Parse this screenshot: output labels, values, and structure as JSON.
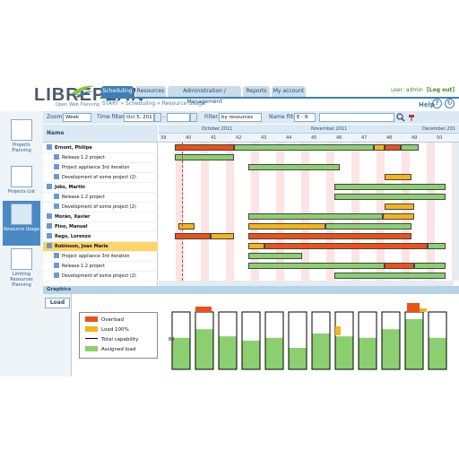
{
  "app": {
    "logo_text": "LIBREPLAN",
    "logo_sub": "Open Web Planning"
  },
  "tabs": [
    {
      "label": "Scheduling",
      "active": true
    },
    {
      "label": "Resources",
      "active": false
    },
    {
      "label": "Administration / Management",
      "active": false
    },
    {
      "label": "Reports",
      "active": false
    },
    {
      "label": "My account",
      "active": false
    }
  ],
  "user": {
    "label": "user: admin",
    "logout": "[Log out]"
  },
  "breadcrumb": {
    "start": "START",
    "sep": "»",
    "scheduling": "Scheduling",
    "current": "Resource Usage"
  },
  "help": {
    "label": "Help",
    "q_icon": "?",
    "refresh_icon": "↻"
  },
  "sidebar": {
    "items": [
      {
        "label": "Projects Planning",
        "icon": "gantt-icon",
        "active": false
      },
      {
        "label": "Projects List",
        "icon": "list-icon",
        "active": false
      },
      {
        "label": "Resource Usage",
        "icon": "chart-icon",
        "active": true
      },
      {
        "label": "Limiting Resources Planning",
        "icon": "queue-icon",
        "active": false
      }
    ]
  },
  "toolbar": {
    "zoom_label": "Zoom:",
    "zoom_value": "Week",
    "time_filter_label": "Time filter:",
    "time_from": "Oct 5, 201",
    "time_to": "",
    "filter_label": "Filter:",
    "filter_value": "by resources",
    "name_filter_label": "Name filter:",
    "name_filter_value": "E - R",
    "search_value": ""
  },
  "names_header": "Name",
  "rows": [
    {
      "label": "Ernont, Philipe",
      "type": "resource",
      "selected": false
    },
    {
      "label": "Release 1.2 project",
      "type": "task",
      "selected": false
    },
    {
      "label": "Project appliance 3rd iteration",
      "type": "task",
      "selected": false
    },
    {
      "label": "Development of some project (2)",
      "type": "task",
      "selected": false
    },
    {
      "label": "Jobs, Martin",
      "type": "resource",
      "selected": false
    },
    {
      "label": "Release 1.2 project",
      "type": "task",
      "selected": false
    },
    {
      "label": "Development of some project (2)",
      "type": "task",
      "selected": false
    },
    {
      "label": "Morán, Xavier",
      "type": "resource",
      "selected": false
    },
    {
      "label": "Pino, Manuel",
      "type": "resource",
      "selected": false
    },
    {
      "label": "Rego, Lorenzo",
      "type": "resource",
      "selected": false
    },
    {
      "label": "Robinson, Joan Marie",
      "type": "resource",
      "selected": true
    },
    {
      "label": "Project appliance 3rd iteration",
      "type": "task",
      "selected": false
    },
    {
      "label": "Release 1.2 project",
      "type": "task",
      "selected": false
    },
    {
      "label": "Development of some project (2)",
      "type": "task",
      "selected": false
    }
  ],
  "timeline": {
    "months": [
      "October,2011",
      "November,2011",
      "December,201"
    ],
    "weeks": [
      "39",
      "40",
      "41",
      "42",
      "43",
      "44",
      "45",
      "46",
      "47",
      "48",
      "49",
      "50"
    ]
  },
  "graphics_label": "Graphics",
  "load_tab": "Load",
  "legend": [
    {
      "label": "Overload",
      "color": "#e8531a"
    },
    {
      "label": "Load 100%",
      "color": "#f4b41a"
    },
    {
      "label": "Total capability",
      "color": "#000000"
    },
    {
      "label": "Assigned load",
      "color": "#8ccf70"
    }
  ],
  "chart_axis_label": "80",
  "colors": {
    "accent": "#3f7fb4",
    "overload": "#e8531a",
    "load100": "#f4b41a",
    "assigned": "#8ccf70",
    "selected_row": "#fbd46a"
  }
}
